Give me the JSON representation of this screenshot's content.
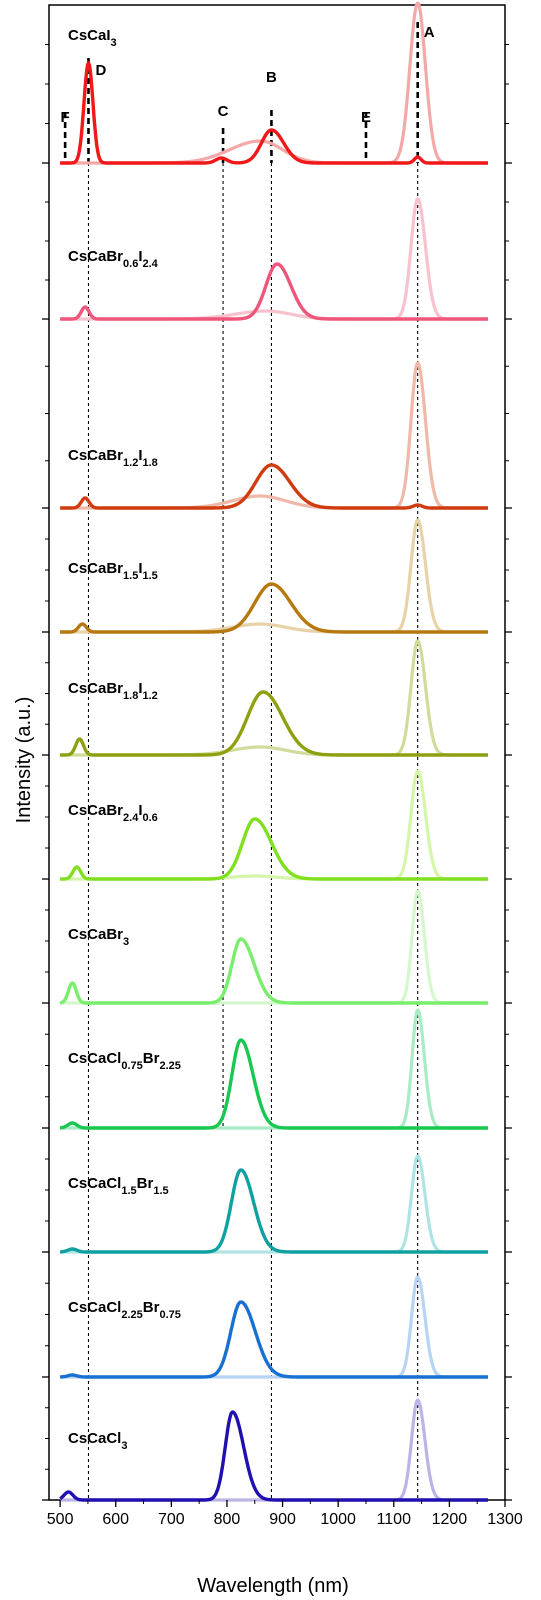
{
  "chart_data": {
    "type": "line",
    "xlabel": "Wavelength (nm)",
    "ylabel": "Intensity (a.u.)",
    "xlim": [
      480,
      1300
    ],
    "xticks": [
      500,
      600,
      700,
      800,
      900,
      1000,
      1100,
      1200,
      1300
    ],
    "reference_lines": [
      {
        "label": "A",
        "x": 1143
      },
      {
        "label": "B",
        "x": 880
      },
      {
        "label": "C",
        "x": 793
      },
      {
        "label": "D",
        "x": 551
      },
      {
        "label": "E",
        "x": 1050
      },
      {
        "label": "F",
        "x": 509
      }
    ],
    "panels": [
      {
        "parts": [
          [
            "CsCaI",
            ""
          ],
          [
            "",
            "3"
          ]
        ],
        "color": "#f01818",
        "faint": "#f4a8a8",
        "main_peaks": [
          [
            551,
            1.0,
            8,
            8
          ],
          [
            880,
            0.33,
            18,
            22
          ],
          [
            790,
            0.05,
            10,
            10
          ],
          [
            1143,
            0.06,
            6,
            6
          ]
        ],
        "faint_peaks": [
          [
            1143,
            1.6,
            14,
            14
          ],
          [
            860,
            0.22,
            55,
            40
          ]
        ]
      },
      {
        "parts": [
          [
            "CsCaBr",
            ""
          ],
          [
            "",
            "0.6"
          ],
          [
            "I",
            ""
          ],
          [
            "",
            "2.4"
          ]
        ],
        "color": "#f0557a",
        "faint": "#f8c2cd",
        "main_peaks": [
          [
            545,
            0.12,
            7,
            7
          ],
          [
            890,
            0.55,
            20,
            25
          ]
        ],
        "faint_peaks": [
          [
            1143,
            1.2,
            12,
            14
          ],
          [
            870,
            0.08,
            55,
            45
          ]
        ]
      },
      {
        "parts": [
          [
            "CsCaBr",
            ""
          ],
          [
            "",
            "1.2"
          ],
          [
            "I",
            ""
          ],
          [
            "",
            "1.8"
          ]
        ],
        "color": "#d03c10",
        "faint": "#f0b8a8",
        "main_peaks": [
          [
            545,
            0.1,
            7,
            7
          ],
          [
            880,
            0.43,
            28,
            33
          ],
          [
            1143,
            0.03,
            8,
            8
          ]
        ],
        "faint_peaks": [
          [
            1143,
            1.45,
            12,
            14
          ],
          [
            860,
            0.12,
            50,
            45
          ]
        ]
      },
      {
        "parts": [
          [
            "CsCaBr",
            ""
          ],
          [
            "",
            "1.5"
          ],
          [
            "I",
            ""
          ],
          [
            "",
            "1.5"
          ]
        ],
        "color": "#b87810",
        "faint": "#e8d2a8",
        "main_peaks": [
          [
            540,
            0.08,
            7,
            7
          ],
          [
            880,
            0.48,
            30,
            35
          ]
        ],
        "faint_peaks": [
          [
            1143,
            1.12,
            12,
            14
          ],
          [
            860,
            0.08,
            50,
            45
          ]
        ]
      },
      {
        "parts": [
          [
            "CsCaBr",
            ""
          ],
          [
            "",
            "1.8"
          ],
          [
            "I",
            ""
          ],
          [
            "",
            "1.2"
          ]
        ],
        "color": "#8ea010",
        "faint": "#d0dc9c",
        "main_peaks": [
          [
            535,
            0.16,
            7,
            7
          ],
          [
            865,
            0.63,
            28,
            35
          ]
        ],
        "faint_peaks": [
          [
            1143,
            1.14,
            12,
            14
          ],
          [
            860,
            0.08,
            50,
            45
          ]
        ]
      },
      {
        "parts": [
          [
            "CsCaBr",
            ""
          ],
          [
            "",
            "2.4"
          ],
          [
            "I",
            ""
          ],
          [
            "",
            "0.6"
          ]
        ],
        "color": "#80e020",
        "faint": "#d4f6a8",
        "main_peaks": [
          [
            530,
            0.12,
            7,
            7
          ],
          [
            850,
            0.6,
            22,
            30
          ]
        ],
        "faint_peaks": [
          [
            1143,
            1.08,
            12,
            14
          ],
          [
            850,
            0.03,
            40,
            40
          ]
        ]
      },
      {
        "parts": [
          [
            "CsCaBr",
            ""
          ],
          [
            "",
            "3"
          ]
        ],
        "color": "#78ee6c",
        "faint": "#d4f8cc",
        "main_peaks": [
          [
            522,
            0.2,
            7,
            7
          ],
          [
            825,
            0.64,
            16,
            24
          ]
        ],
        "faint_peaks": [
          [
            1143,
            1.12,
            10,
            12
          ]
        ]
      },
      {
        "parts": [
          [
            "CsCaCl",
            ""
          ],
          [
            "",
            "0.75"
          ],
          [
            "Br",
            ""
          ],
          [
            "",
            "2.25"
          ]
        ],
        "color": "#18c850",
        "faint": "#a8ecc4",
        "main_peaks": [
          [
            522,
            0.05,
            8,
            8
          ],
          [
            825,
            0.88,
            16,
            22
          ]
        ],
        "faint_peaks": [
          [
            1143,
            1.18,
            10,
            12
          ]
        ]
      },
      {
        "parts": [
          [
            "CsCaCl",
            ""
          ],
          [
            "",
            "1.5"
          ],
          [
            "Br",
            ""
          ],
          [
            "",
            "1.5"
          ]
        ],
        "color": "#10a0a0",
        "faint": "#b0e4e4",
        "main_peaks": [
          [
            522,
            0.03,
            8,
            8
          ],
          [
            825,
            0.82,
            17,
            23
          ]
        ],
        "faint_peaks": [
          [
            1143,
            0.96,
            11,
            13
          ]
        ]
      },
      {
        "parts": [
          [
            "CsCaCl",
            ""
          ],
          [
            "",
            "2.25"
          ],
          [
            "Br",
            ""
          ],
          [
            "",
            "0.75"
          ]
        ],
        "color": "#1870d0",
        "faint": "#b8d4f4",
        "main_peaks": [
          [
            522,
            0.02,
            8,
            8
          ],
          [
            825,
            0.75,
            18,
            26
          ]
        ],
        "faint_peaks": [
          [
            1143,
            1.0,
            11,
            13
          ]
        ]
      },
      {
        "parts": [
          [
            "CsCaCl",
            ""
          ],
          [
            "",
            "3"
          ]
        ],
        "color": "#2010b0",
        "faint": "#bcb4e6",
        "main_peaks": [
          [
            515,
            0.08,
            8,
            8
          ],
          [
            810,
            0.88,
            13,
            20
          ]
        ],
        "faint_peaks": [
          [
            1143,
            1.0,
            11,
            13
          ]
        ]
      }
    ]
  }
}
